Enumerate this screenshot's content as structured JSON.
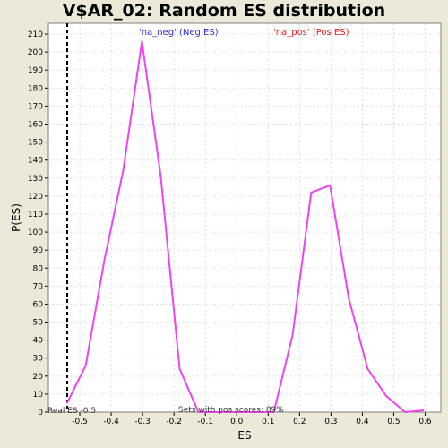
{
  "chart_data": {
    "type": "line",
    "title": "V$AR_02: Random ES distribution",
    "xlabel": "ES",
    "ylabel": "P(ES)",
    "xlim": [
      -0.6,
      0.65
    ],
    "ylim": [
      0,
      216
    ],
    "x_ticks": [
      -0.5,
      -0.4,
      -0.3,
      -0.2,
      -0.1,
      0.0,
      0.1,
      0.2,
      0.3,
      0.4,
      0.5,
      0.6
    ],
    "x_tick_labels": [
      "-0.5",
      "-0.4",
      "-0.3",
      "-0.2",
      "-0.1",
      "0.0",
      "0.1",
      "0.2",
      "0.3",
      "0.4",
      "0.5",
      "0.6"
    ],
    "y_ticks": [
      0,
      10,
      20,
      30,
      40,
      50,
      60,
      70,
      80,
      90,
      100,
      110,
      120,
      130,
      140,
      150,
      160,
      170,
      180,
      190,
      200,
      210
    ],
    "grid": true,
    "series": [
      {
        "color": "#EE44EE",
        "x": [
          -0.541,
          -0.481,
          -0.421,
          -0.362,
          -0.302,
          -0.242,
          -0.182,
          -0.122,
          -0.062,
          0.0,
          0.058,
          0.118,
          0.178,
          0.237,
          0.297,
          0.357,
          0.417,
          0.476,
          0.536,
          0.596
        ],
        "y": [
          5,
          26,
          85,
          134,
          206,
          131,
          24,
          0,
          0,
          0,
          0,
          0,
          43,
          122,
          126,
          63,
          24,
          9,
          0,
          1
        ]
      }
    ],
    "vertical_line": {
      "x": -0.54,
      "style": "dashed",
      "color": "#000000"
    },
    "legend": [
      {
        "label": "'na_neg' (Neg ES)",
        "color": "#3333CC"
      },
      {
        "label": "'na_pos' (Pos ES)",
        "color": "#DD2222"
      }
    ],
    "annotations": {
      "real_es": "Real ES -0.5",
      "pos_scores": "Sets with pos scores: 89%"
    }
  },
  "colors": {
    "background": "#ECE9D8",
    "plot_background": "#FFFFFF",
    "grid": "#DDDDDD",
    "line": "#EE44EE"
  }
}
